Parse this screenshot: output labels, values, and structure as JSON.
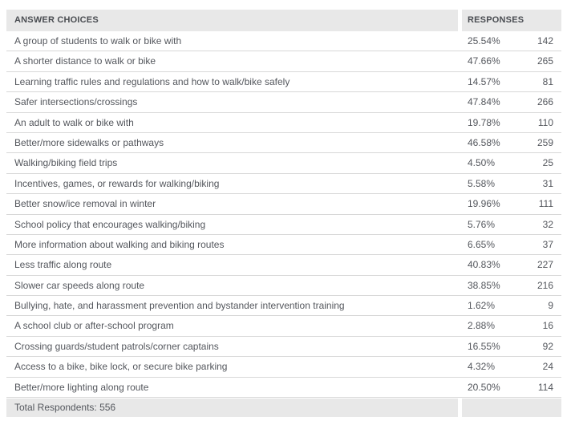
{
  "colors": {
    "header_bg": "#e8e8e8",
    "header_text": "#4a4d52",
    "text": "#54575d",
    "border": "#d8d8d8",
    "row_bg": "#ffffff"
  },
  "table": {
    "header": {
      "answer_label": "ANSWER CHOICES",
      "responses_label": "RESPONSES"
    },
    "rows": [
      {
        "answer": "A group of students to walk or bike with",
        "percent": "25.54%",
        "count": "142"
      },
      {
        "answer": "A shorter distance to walk or bike",
        "percent": "47.66%",
        "count": "265"
      },
      {
        "answer": "Learning traffic rules and regulations and how to walk/bike safely",
        "percent": "14.57%",
        "count": "81"
      },
      {
        "answer": "Safer intersections/crossings",
        "percent": "47.84%",
        "count": "266"
      },
      {
        "answer": "An adult to walk or bike with",
        "percent": "19.78%",
        "count": "110"
      },
      {
        "answer": "Better/more sidewalks or pathways",
        "percent": "46.58%",
        "count": "259"
      },
      {
        "answer": "Walking/biking field trips",
        "percent": "4.50%",
        "count": "25"
      },
      {
        "answer": "Incentives, games, or rewards for walking/biking",
        "percent": "5.58%",
        "count": "31"
      },
      {
        "answer": "Better snow/ice removal in winter",
        "percent": "19.96%",
        "count": "111"
      },
      {
        "answer": "School policy that encourages walking/biking",
        "percent": "5.76%",
        "count": "32"
      },
      {
        "answer": "More information about walking and biking routes",
        "percent": "6.65%",
        "count": "37"
      },
      {
        "answer": "Less traffic along route",
        "percent": "40.83%",
        "count": "227"
      },
      {
        "answer": "Slower car speeds along route",
        "percent": "38.85%",
        "count": "216"
      },
      {
        "answer": "Bullying, hate, and harassment prevention and bystander intervention training",
        "percent": "1.62%",
        "count": "9"
      },
      {
        "answer": "A school club or after-school program",
        "percent": "2.88%",
        "count": "16"
      },
      {
        "answer": "Crossing guards/student patrols/corner captains",
        "percent": "16.55%",
        "count": "92"
      },
      {
        "answer": "Access to a bike, bike lock, or secure bike parking",
        "percent": "4.32%",
        "count": "24"
      },
      {
        "answer": "Better/more lighting along route",
        "percent": "20.50%",
        "count": "114"
      }
    ],
    "footer": {
      "total_label": "Total Respondents: 556"
    }
  },
  "chart_data": {
    "type": "table",
    "title": "",
    "columns": [
      "ANSWER CHOICES",
      "RESPONSES (%)",
      "RESPONSES (count)"
    ],
    "categories": [
      "A group of students to walk or bike with",
      "A shorter distance to walk or bike",
      "Learning traffic rules and regulations and how to walk/bike safely",
      "Safer intersections/crossings",
      "An adult to walk or bike with",
      "Better/more sidewalks or pathways",
      "Walking/biking field trips",
      "Incentives, games, or rewards for walking/biking",
      "Better snow/ice removal in winter",
      "School policy that encourages walking/biking",
      "More information about walking and biking routes",
      "Less traffic along route",
      "Slower car speeds along route",
      "Bullying, hate, and harassment prevention and bystander intervention training",
      "A school club or after-school program",
      "Crossing guards/student patrols/corner captains",
      "Access to a bike, bike lock, or secure bike parking",
      "Better/more lighting along route"
    ],
    "series": [
      {
        "name": "Percent",
        "values": [
          25.54,
          47.66,
          14.57,
          47.84,
          19.78,
          46.58,
          4.5,
          5.58,
          19.96,
          5.76,
          6.65,
          40.83,
          38.85,
          1.62,
          2.88,
          16.55,
          4.32,
          20.5
        ]
      },
      {
        "name": "Count",
        "values": [
          142,
          265,
          81,
          266,
          110,
          259,
          25,
          31,
          111,
          32,
          37,
          227,
          216,
          9,
          16,
          92,
          24,
          114
        ]
      }
    ],
    "total_respondents": 556
  }
}
